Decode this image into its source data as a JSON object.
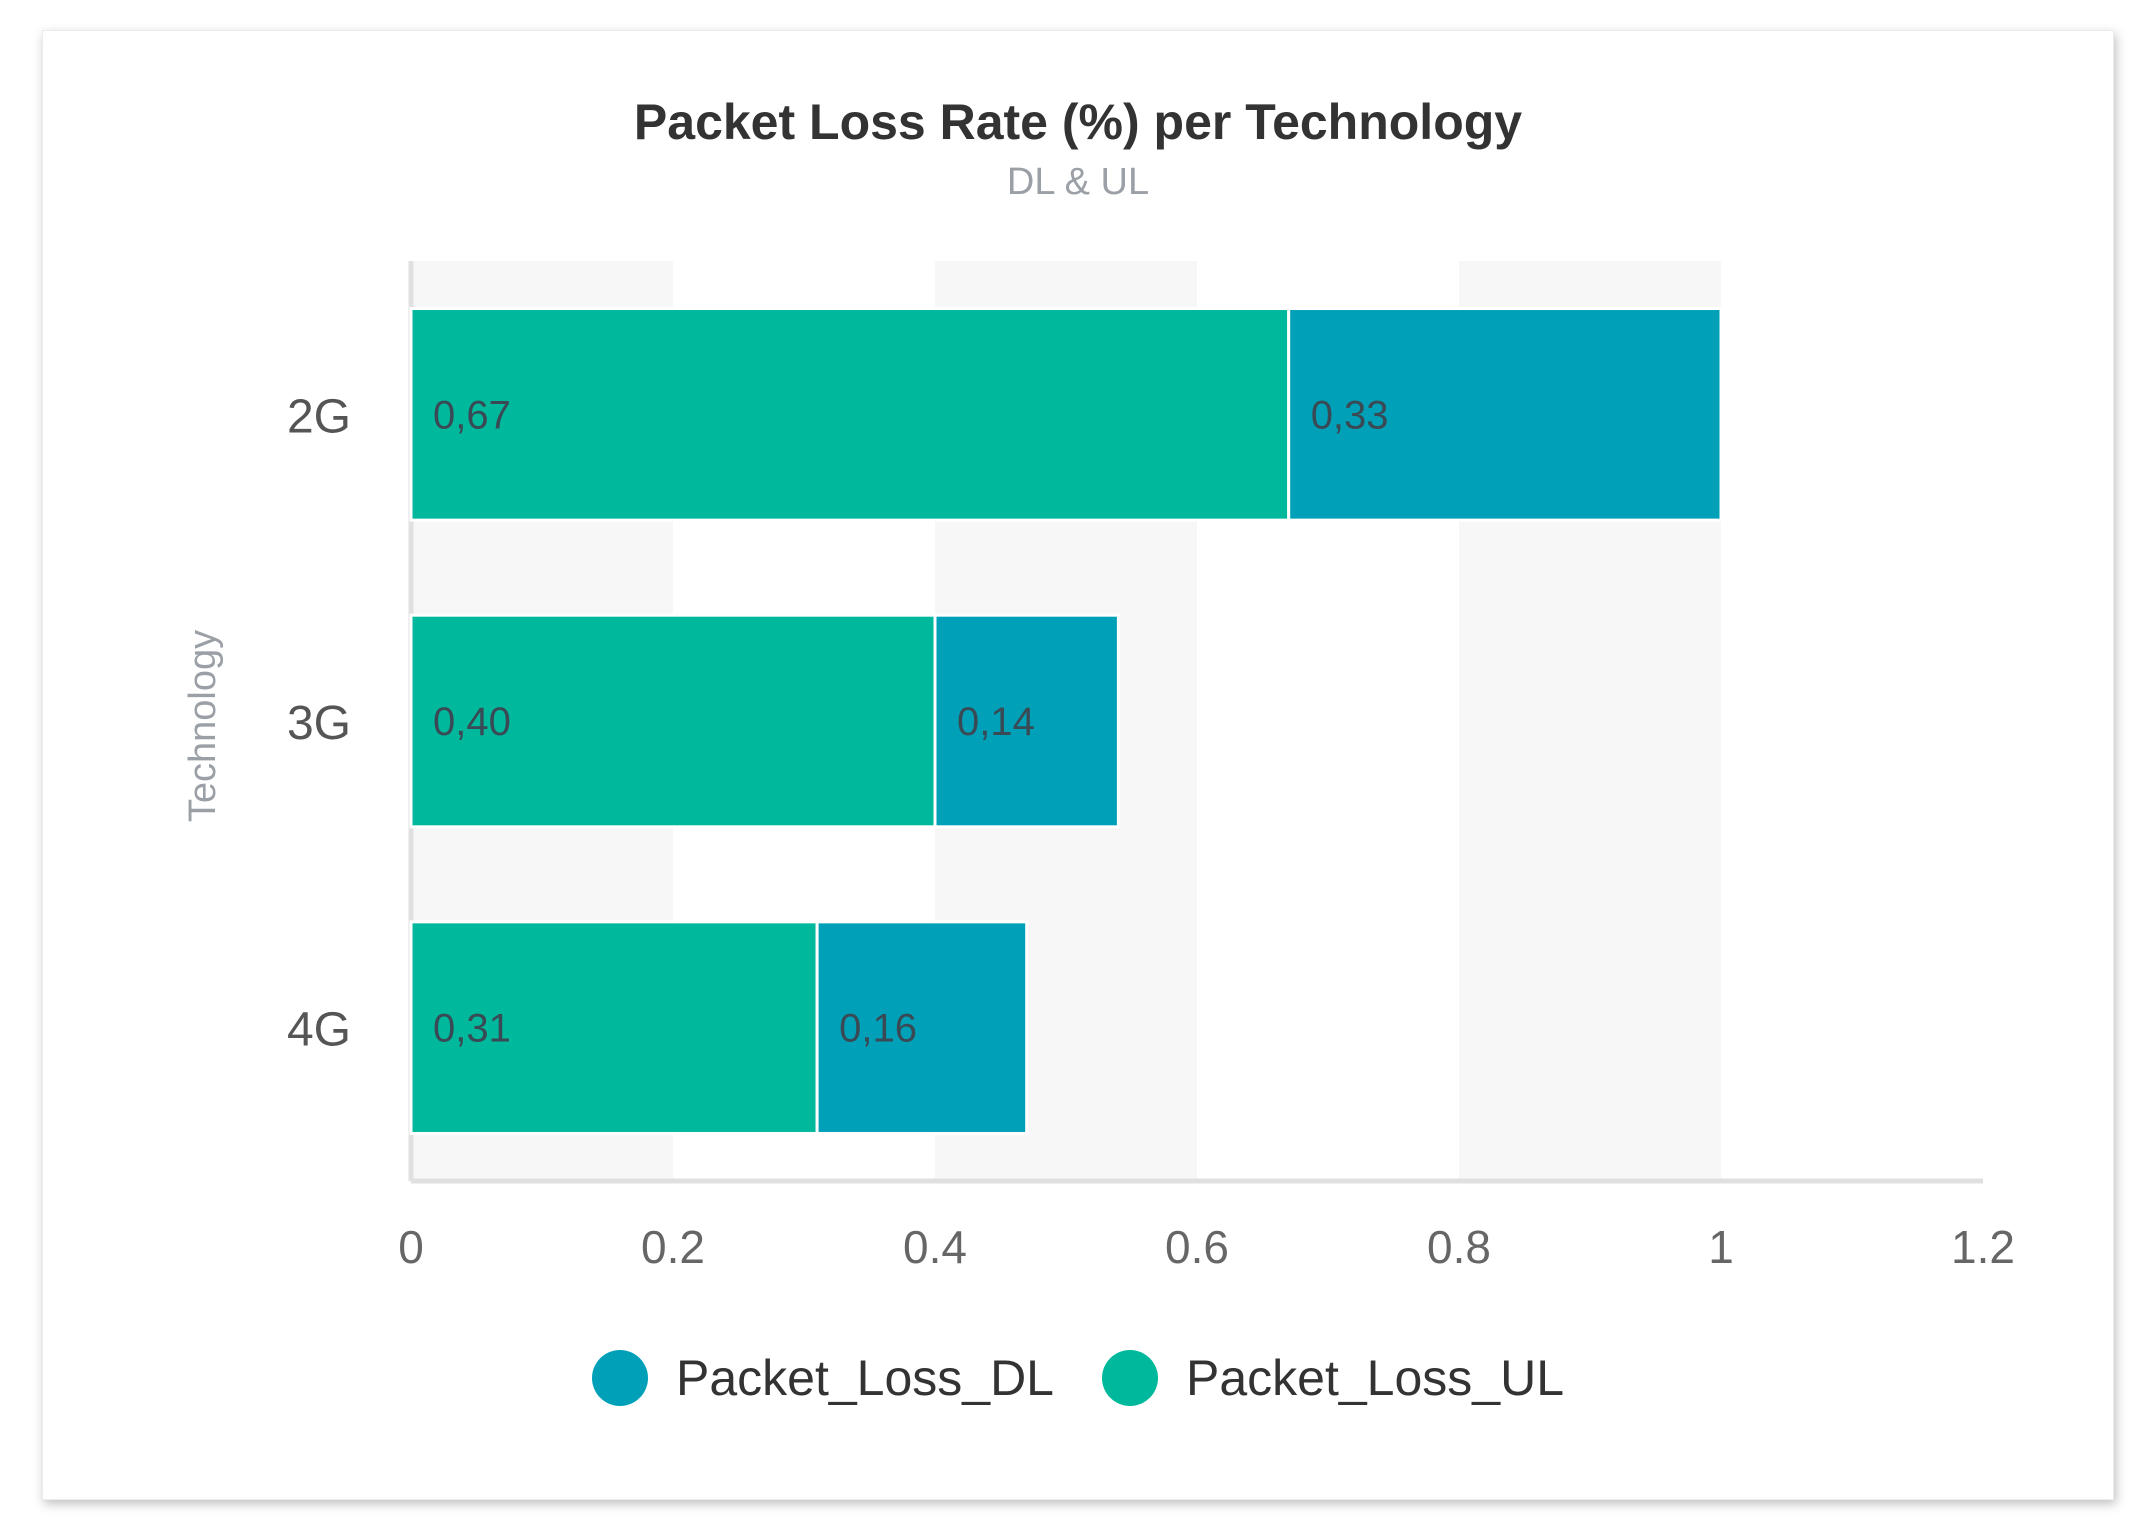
{
  "chart_data": {
    "type": "bar",
    "orientation": "horizontal",
    "stacked": true,
    "title": "Packet Loss Rate (%) per Technology",
    "subtitle": "DL & UL",
    "ylabel": "Technology",
    "xlabel": "",
    "categories": [
      "2G",
      "3G",
      "4G"
    ],
    "series": [
      {
        "name": "Packet_Loss_UL",
        "color": "#00b89c",
        "values": [
          0.67,
          0.4,
          0.31
        ],
        "labels": [
          "0,67",
          "0,40",
          "0,31"
        ]
      },
      {
        "name": "Packet_Loss_DL",
        "color": "#00a1b8",
        "values": [
          0.33,
          0.14,
          0.16
        ],
        "labels": [
          "0,33",
          "0,14",
          "0,16"
        ]
      }
    ],
    "xlim": [
      0,
      1.2
    ],
    "xticks": [
      0,
      0.2,
      0.4,
      0.6,
      0.8,
      1,
      1.2
    ],
    "xtick_labels": [
      "0",
      "0.2",
      "0.4",
      "0.6",
      "0.8",
      "1",
      "1.2"
    ],
    "grid": "alternating vertical bands",
    "legend_position": "bottom",
    "legend": [
      {
        "name": "Packet_Loss_DL",
        "color": "#00a1b8"
      },
      {
        "name": "Packet_Loss_UL",
        "color": "#00b89c"
      }
    ]
  }
}
